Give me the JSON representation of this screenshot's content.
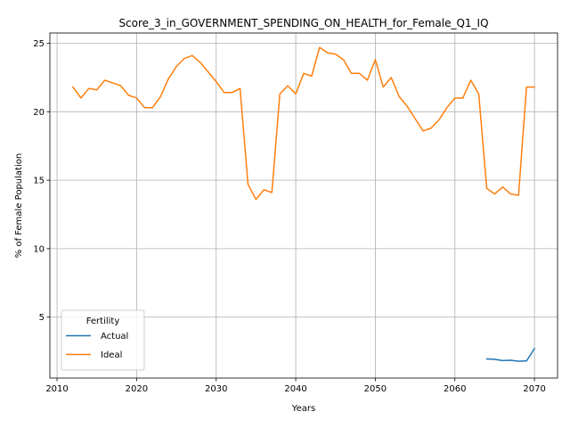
{
  "chart_data": {
    "type": "line",
    "title": "Score_3_in_GOVERNMENT_SPENDING_ON_HEALTH_for_Female_Q1_IQ",
    "xlabel": "Years",
    "ylabel": "% of Female Population",
    "xlim": [
      2009.1,
      2072.9
    ],
    "ylim": [
      0.55,
      25.75
    ],
    "xticks": [
      2010,
      2020,
      2030,
      2040,
      2050,
      2060,
      2070
    ],
    "yticks": [
      5,
      10,
      15,
      20,
      25
    ],
    "grid": true,
    "legend": {
      "title": "Fertility",
      "placement": "lower-left"
    },
    "series": [
      {
        "name": "Actual",
        "color": "#1f77b4",
        "x": [
          2064,
          2065,
          2066,
          2067,
          2068,
          2069,
          2070
        ],
        "y": [
          1.95,
          1.92,
          1.83,
          1.85,
          1.78,
          1.8,
          2.7
        ]
      },
      {
        "name": "Ideal",
        "color": "#ff7f0e",
        "x": [
          2012,
          2013,
          2014,
          2015,
          2016,
          2017,
          2018,
          2019,
          2020,
          2021,
          2022,
          2023,
          2024,
          2025,
          2026,
          2027,
          2028,
          2029,
          2030,
          2031,
          2032,
          2033,
          2034,
          2035,
          2036,
          2037,
          2038,
          2039,
          2040,
          2041,
          2042,
          2043,
          2044,
          2045,
          2046,
          2047,
          2048,
          2049,
          2050,
          2051,
          2052,
          2053,
          2054,
          2055,
          2056,
          2057,
          2058,
          2059,
          2060,
          2061,
          2062,
          2063,
          2064,
          2065,
          2066,
          2067,
          2068,
          2069,
          2070
        ],
        "y": [
          21.8,
          21.0,
          21.7,
          21.6,
          22.3,
          22.1,
          21.9,
          21.2,
          21.0,
          20.3,
          20.3,
          21.1,
          22.4,
          23.3,
          23.9,
          24.1,
          23.6,
          22.9,
          22.2,
          21.4,
          21.4,
          21.7,
          14.7,
          13.6,
          14.3,
          14.1,
          21.3,
          21.9,
          21.3,
          22.8,
          22.6,
          24.7,
          24.3,
          24.2,
          23.8,
          22.8,
          22.8,
          22.3,
          23.8,
          21.8,
          22.5,
          21.1,
          20.4,
          19.5,
          18.6,
          18.8,
          19.4,
          20.3,
          21.0,
          21.0,
          22.3,
          21.3,
          14.4,
          14.0,
          14.5,
          14.0,
          13.9,
          21.8,
          21.8
        ]
      }
    ]
  }
}
